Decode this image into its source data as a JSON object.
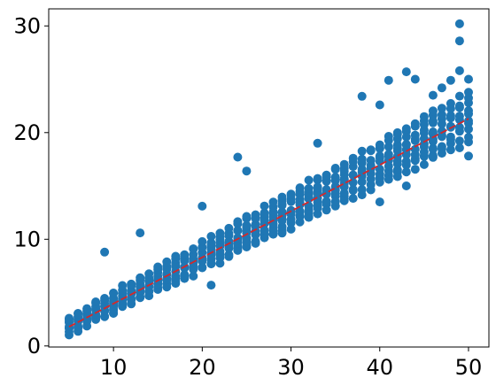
{
  "chart_data": {
    "type": "scatter",
    "title": "",
    "xlabel": "",
    "ylabel": "",
    "xlim": [
      2.7,
      52.3
    ],
    "ylim": [
      -0.1,
      31.6
    ],
    "x_ticks": [
      10,
      20,
      30,
      40,
      50
    ],
    "y_ticks": [
      0,
      10,
      20,
      30
    ],
    "x_tick_labels": [
      "10",
      "20",
      "30",
      "40",
      "50"
    ],
    "y_tick_labels": [
      "0",
      "10",
      "20",
      "30"
    ],
    "grid": false,
    "legend": "none",
    "point_color": "#1f77b4",
    "fit_color": "#d62728",
    "x_range": [
      5,
      50
    ],
    "trend": {
      "slope": 0.435,
      "intercept": -0.3,
      "spread_low": 0.75,
      "spread_high": 2.3
    },
    "fit_line": {
      "x": [
        5,
        50
      ],
      "y": [
        1.8,
        21.3
      ],
      "style": "dashed"
    },
    "outliers": [
      {
        "x": 9,
        "y": 8.8
      },
      {
        "x": 13,
        "y": 10.6
      },
      {
        "x": 20,
        "y": 13.1
      },
      {
        "x": 21,
        "y": 5.7
      },
      {
        "x": 24,
        "y": 17.7
      },
      {
        "x": 25,
        "y": 16.4
      },
      {
        "x": 33,
        "y": 19.0
      },
      {
        "x": 38,
        "y": 23.4
      },
      {
        "x": 40,
        "y": 22.6
      },
      {
        "x": 40,
        "y": 13.5
      },
      {
        "x": 41,
        "y": 24.9
      },
      {
        "x": 43,
        "y": 25.7
      },
      {
        "x": 43,
        "y": 15.0
      },
      {
        "x": 44,
        "y": 25.0
      },
      {
        "x": 46,
        "y": 23.5
      },
      {
        "x": 47,
        "y": 24.2
      },
      {
        "x": 48,
        "y": 24.9
      },
      {
        "x": 49,
        "y": 30.2
      },
      {
        "x": 49,
        "y": 28.6
      },
      {
        "x": 49,
        "y": 25.8
      },
      {
        "x": 50,
        "y": 25.0
      },
      {
        "x": 50,
        "y": 17.8
      }
    ]
  }
}
